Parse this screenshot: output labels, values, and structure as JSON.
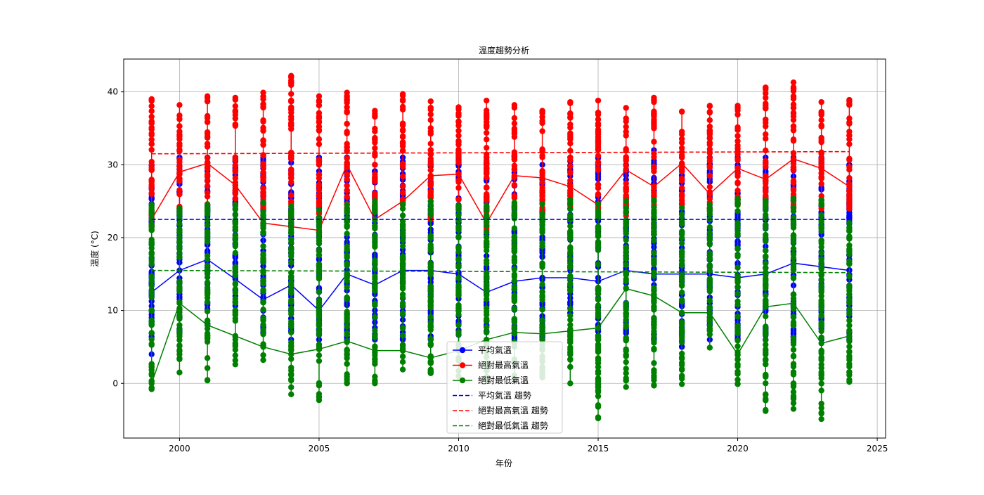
{
  "chart_data": {
    "type": "line",
    "title": "溫度趨勢分析",
    "xlabel": "年份",
    "ylabel": "溫度 (°C)",
    "xlim": [
      1998,
      2025.3
    ],
    "ylim": [
      -7.5,
      44.5
    ],
    "xticks": [
      2000,
      2005,
      2010,
      2015,
      2020,
      2025
    ],
    "yticks": [
      0,
      10,
      20,
      30,
      40
    ],
    "grid": true,
    "legend_position": "bottom-center",
    "series": [
      {
        "name": "平均氣溫",
        "color": "#0000ff",
        "marker": "circle",
        "x": [
          1999,
          2000,
          2001,
          2002,
          2003,
          2004,
          2005,
          2006,
          2007,
          2008,
          2009,
          2010,
          2011,
          2012,
          2013,
          2014,
          2015,
          2016,
          2017,
          2018,
          2019,
          2020,
          2021,
          2022,
          2023,
          2024
        ],
        "y_connect": [
          12.5,
          15.5,
          17.0,
          14.3,
          11.5,
          13.5,
          10.0,
          15.0,
          13.5,
          15.5,
          15.5,
          15.0,
          12.5,
          14.0,
          14.5,
          14.5,
          14.0,
          15.5,
          15.0,
          15.0,
          15.0,
          14.5,
          15.0,
          16.5,
          16.0,
          15.5
        ],
        "y_min": [
          4,
          7,
          8,
          10,
          7,
          6,
          6,
          6,
          6,
          6,
          6,
          5,
          5,
          6,
          6,
          6,
          6,
          6,
          6,
          5,
          6,
          6,
          6,
          6,
          6,
          6
        ],
        "y_max": [
          30,
          31,
          31,
          31,
          31,
          31,
          31,
          31,
          30,
          31,
          30,
          31,
          31,
          31,
          30,
          31,
          31,
          30,
          32,
          30,
          31,
          31,
          31,
          31,
          31,
          30
        ]
      },
      {
        "name": "絕對最高氣溫",
        "color": "#ff0000",
        "marker": "circle",
        "x": [
          1999,
          2000,
          2001,
          2002,
          2003,
          2004,
          2005,
          2006,
          2007,
          2008,
          2009,
          2010,
          2011,
          2012,
          2013,
          2014,
          2015,
          2016,
          2017,
          2018,
          2019,
          2020,
          2021,
          2022,
          2023,
          2024
        ],
        "y_connect": [
          22.5,
          29.0,
          30.2,
          27.2,
          22.0,
          21.5,
          21.0,
          30.0,
          22.5,
          25.0,
          28.5,
          28.7,
          22.0,
          28.5,
          28.2,
          27.0,
          24.5,
          29.3,
          27.0,
          30.2,
          26.0,
          29.5,
          28.0,
          30.8,
          29.5,
          27.0
        ],
        "y_min": [
          21.5,
          24,
          24.5,
          24.5,
          24,
          22.5,
          22.5,
          24,
          24,
          24.5,
          22.5,
          24,
          21,
          24,
          22.5,
          24,
          24,
          23,
          24.5,
          24.5,
          24,
          24.5,
          24.5,
          24,
          24,
          24
        ],
        "y_max": [
          39.0,
          38.2,
          39.4,
          39.2,
          39.9,
          42.2,
          39.4,
          39.9,
          37.4,
          39.7,
          38.7,
          37.9,
          38.8,
          38.2,
          37.4,
          38.6,
          38.8,
          37.8,
          39.2,
          37.3,
          38.1,
          38.1,
          40.6,
          41.3,
          38.6,
          38.9
        ]
      },
      {
        "name": "絕對最低氣溫",
        "color": "#008000",
        "marker": "circle",
        "x": [
          1999,
          2000,
          2001,
          2002,
          2003,
          2004,
          2005,
          2006,
          2007,
          2008,
          2009,
          2010,
          2011,
          2012,
          2013,
          2014,
          2015,
          2016,
          2017,
          2018,
          2019,
          2020,
          2021,
          2022,
          2023,
          2024
        ],
        "y_connect": [
          0.0,
          11.0,
          8.0,
          6.5,
          5.0,
          4.0,
          4.7,
          5.8,
          4.5,
          4.5,
          3.5,
          4.5,
          6.0,
          7.0,
          6.8,
          7.2,
          7.6,
          13.0,
          12.0,
          9.7,
          9.7,
          4.0,
          10.5,
          11.0,
          5.5,
          6.5
        ],
        "y_min": [
          -0.8,
          1.5,
          0.4,
          2.6,
          3.2,
          -1.5,
          -2.3,
          0.0,
          0.0,
          1.9,
          1.4,
          1.0,
          0.5,
          0.5,
          0.8,
          0.0,
          -4.8,
          -0.5,
          -0.3,
          -0.1,
          4.9,
          -0.1,
          -3.8,
          -3.5,
          -4.9,
          0.2
        ],
        "y_max": [
          24.5,
          24.0,
          24.5,
          24.5,
          24.8,
          24.3,
          23.8,
          24.5,
          25.0,
          24.6,
          25.0,
          24.4,
          24.4,
          24.8,
          24.6,
          25.2,
          24.6,
          25.0,
          25.2,
          24.1,
          24.5,
          25.3,
          25.0,
          25.3,
          25.2,
          22.0
        ]
      }
    ],
    "trend_series": [
      {
        "name": "平均氣溫 趨勢",
        "color": "#0000ff",
        "x": [
          1999,
          2024
        ],
        "y": [
          22.5,
          22.5
        ]
      },
      {
        "name": "絕對最高氣溫 趨勢",
        "color": "#ff0000",
        "x": [
          1999,
          2024
        ],
        "y": [
          31.5,
          31.8
        ]
      },
      {
        "name": "絕對最低氣溫 趨勢",
        "color": "#008000",
        "x": [
          1999,
          2024
        ],
        "y": [
          15.5,
          15.2
        ]
      }
    ]
  }
}
